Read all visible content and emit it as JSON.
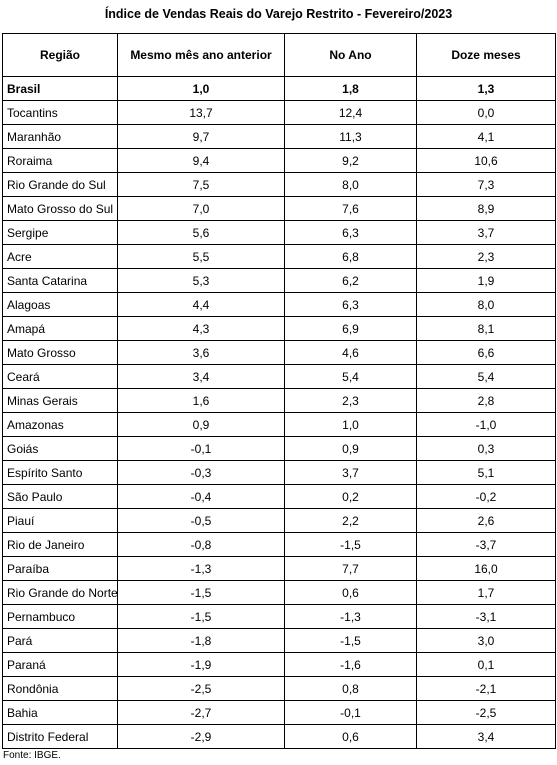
{
  "title": "Índice de Vendas Reais do Varejo Restrito - Fevereiro/2023",
  "table": {
    "header": [
      "Região",
      "Mesmo mês ano anterior",
      "No Ano",
      "Doze meses"
    ],
    "rows": [
      [
        "Brasil",
        "1,0",
        "1,8",
        "1,3"
      ],
      [
        "Tocantins",
        "13,7",
        "12,4",
        "0,0"
      ],
      [
        "Maranhão",
        "9,7",
        "11,3",
        "4,1"
      ],
      [
        "Roraima",
        "9,4",
        "9,2",
        "10,6"
      ],
      [
        "Rio Grande do Sul",
        "7,5",
        "8,0",
        "7,3"
      ],
      [
        "Mato Grosso do Sul",
        "7,0",
        "7,6",
        "8,9"
      ],
      [
        "Sergipe",
        "5,6",
        "6,3",
        "3,7"
      ],
      [
        "Acre",
        "5,5",
        "6,8",
        "2,3"
      ],
      [
        "Santa Catarina",
        "5,3",
        "6,2",
        "1,9"
      ],
      [
        "Alagoas",
        "4,4",
        "6,3",
        "8,0"
      ],
      [
        "Amapá",
        "4,3",
        "6,9",
        "8,1"
      ],
      [
        "Mato Grosso",
        "3,6",
        "4,6",
        "6,6"
      ],
      [
        "Ceará",
        "3,4",
        "5,4",
        "5,4"
      ],
      [
        "Minas Gerais",
        "1,6",
        "2,3",
        "2,8"
      ],
      [
        "Amazonas",
        "0,9",
        "1,0",
        "-1,0"
      ],
      [
        "Goiás",
        "-0,1",
        "0,9",
        "0,3"
      ],
      [
        "Espírito Santo",
        "-0,3",
        "3,7",
        "5,1"
      ],
      [
        "São Paulo",
        "-0,4",
        "0,2",
        "-0,2"
      ],
      [
        "Piauí",
        "-0,5",
        "2,2",
        "2,6"
      ],
      [
        "Rio de Janeiro",
        "-0,8",
        "-1,5",
        "-3,7"
      ],
      [
        "Paraíba",
        "-1,3",
        "7,7",
        "16,0"
      ],
      [
        "Rio Grande do Norte",
        "-1,5",
        "0,6",
        "1,7"
      ],
      [
        "Pernambuco",
        "-1,5",
        "-1,3",
        "-3,1"
      ],
      [
        "Pará",
        "-1,8",
        "-1,5",
        "3,0"
      ],
      [
        "Paraná",
        "-1,9",
        "-1,6",
        "0,1"
      ],
      [
        "Rondônia",
        "-2,5",
        "0,8",
        "-2,1"
      ],
      [
        "Bahia",
        "-2,7",
        "-0,1",
        "-2,5"
      ],
      [
        "Distrito Federal",
        "-2,9",
        "0,6",
        "3,4"
      ]
    ]
  },
  "footnote": "Fonte: IBGE."
}
